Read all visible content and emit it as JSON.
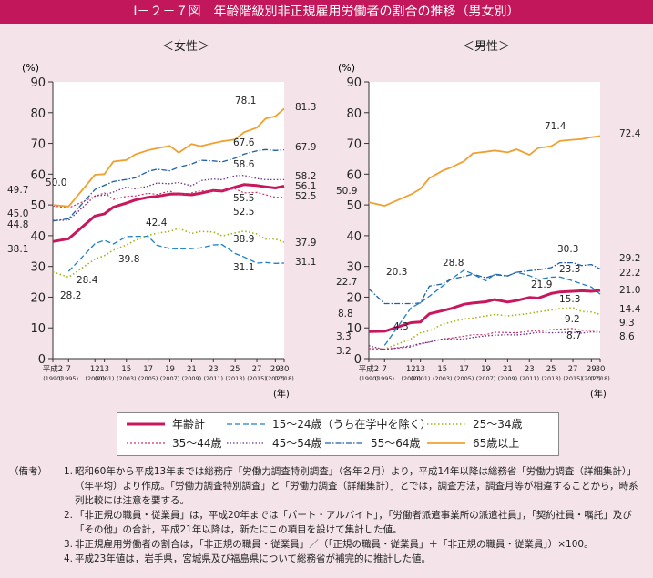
{
  "title": "Ⅰ－２－７図　年齢階級別非正規雇用労働者の割合の推移（男女別）",
  "panels": [
    {
      "title": "＜女性＞"
    },
    {
      "title": "＜男性＞"
    }
  ],
  "axis": {
    "unit": "(%)",
    "year_unit": "(年)",
    "y_ticks": [
      "0",
      "10",
      "20",
      "30",
      "40",
      "50",
      "60",
      "70",
      "80",
      "90"
    ],
    "x_ticks_top": [
      "平成2",
      "7",
      "12",
      "13",
      "15",
      "17",
      "19",
      "21",
      "23",
      "25",
      "27",
      "29",
      "30"
    ],
    "x_ticks_bottom": [
      "(1990)",
      "(1995)",
      "(2000)",
      "(2001)",
      "(2003)",
      "(2005)",
      "(2007)",
      "(2009)",
      "(2011)",
      "(2013)",
      "(2015)",
      "(2017)",
      "(2018)"
    ]
  },
  "legend": [
    {
      "label": "年齢計",
      "color": "#c8175d",
      "dash": "",
      "width": 3
    },
    {
      "label": "15～24歳（うち在学中を除く）",
      "color": "#1f7fc7",
      "dash": "6,3",
      "width": 1.3
    },
    {
      "label": "25～34歳",
      "color": "#a8b414",
      "dash": "1.5,2.5",
      "width": 1.6
    },
    {
      "label": "35～44歳",
      "color": "#d0306a",
      "dash": "2,2",
      "width": 1.2
    },
    {
      "label": "45～54歳",
      "color": "#6a2d91",
      "dash": "1.5,2",
      "width": 1.3
    },
    {
      "label": "55～64歳",
      "color": "#1f5fa8",
      "dash": "6,2,1.5,2",
      "width": 1.3
    },
    {
      "label": "65歳以上",
      "color": "#f0a030",
      "dash": "",
      "width": 1.8
    }
  ],
  "chart_data": [
    {
      "type": "line",
      "title": "＜女性＞",
      "ylabel": "(%)",
      "xlabel": "(年)",
      "ylim": [
        0,
        90
      ],
      "x": [
        1990,
        1995,
        2000,
        2001,
        2002,
        2003,
        2004,
        2005,
        2006,
        2007,
        2008,
        2009,
        2010,
        2011,
        2012,
        2013,
        2014,
        2015,
        2016,
        2017,
        2018
      ],
      "series": [
        {
          "name": "年齢計",
          "values": [
            38.1,
            39,
            46.4,
            47.1,
            49.3,
            50.6,
            51.6,
            52.5,
            52.8,
            53.5,
            53.6,
            53.3,
            53.8,
            54.7,
            54.5,
            55.8,
            56.6,
            56.3,
            55.9,
            55.5,
            56.1
          ]
        },
        {
          "name": "15～24歳（うち在学中を除く）",
          "values": [
            null,
            28.4,
            37.4,
            38.5,
            37.3,
            39.7,
            39.8,
            39.8,
            36.9,
            35.8,
            35.7,
            35.8,
            36,
            37,
            37.1,
            34.2,
            33.1,
            31.1,
            31.3,
            31,
            31.1
          ]
        },
        {
          "name": "25～34歳",
          "values": [
            28.2,
            26.5,
            32.4,
            33.5,
            35.3,
            37,
            38.5,
            40.1,
            40.8,
            41.4,
            42.4,
            40.7,
            41.4,
            41.2,
            39.9,
            40.9,
            41.5,
            40.6,
            38.9,
            38.9,
            37.9
          ]
        },
        {
          "name": "35～44歳",
          "values": [
            49.7,
            49,
            52.8,
            53.9,
            51.8,
            52.8,
            52.9,
            53.8,
            53.4,
            54.5,
            53.3,
            53.9,
            54.6,
            54.5,
            54.8,
            55.2,
            53.9,
            54.1,
            53.3,
            52.5,
            52.5
          ]
        },
        {
          "name": "45～54歳",
          "values": [
            45,
            45,
            52.9,
            53.2,
            54.2,
            55.8,
            55.2,
            56.1,
            57.1,
            56.9,
            57.3,
            56.2,
            57.9,
            58.4,
            58.2,
            59.5,
            59.6,
            58.6,
            58.2,
            58.2,
            58.2
          ]
        },
        {
          "name": "55～64歳",
          "values": [
            44.8,
            45.5,
            55,
            56.4,
            57.6,
            58.3,
            58.8,
            60.9,
            61.6,
            61.1,
            62.3,
            63.3,
            64.5,
            64.3,
            64,
            65.2,
            66.5,
            67.6,
            68,
            67.7,
            67.9
          ]
        },
        {
          "name": "65歳以上",
          "values": [
            50,
            49.5,
            59.8,
            60,
            64.1,
            64.6,
            66.4,
            67.8,
            68.4,
            69.2,
            67,
            69.8,
            69.1,
            70.1,
            70.7,
            71.3,
            73.6,
            75.1,
            78.1,
            78.8,
            81.3
          ]
        }
      ]
    },
    {
      "type": "line",
      "title": "＜男性＞",
      "ylabel": "(%)",
      "xlabel": "(年)",
      "ylim": [
        0,
        90
      ],
      "x": [
        1990,
        1995,
        2000,
        2001,
        2002,
        2003,
        2004,
        2005,
        2006,
        2007,
        2008,
        2009,
        2010,
        2011,
        2012,
        2013,
        2014,
        2015,
        2016,
        2017,
        2018
      ],
      "series": [
        {
          "name": "年齢計",
          "values": [
            8.8,
            8.9,
            11.7,
            11.9,
            14.6,
            15.6,
            16.3,
            17.7,
            18.1,
            18.5,
            19.2,
            18.4,
            18.9,
            19.9,
            19.7,
            21.2,
            21.7,
            21.9,
            22.1,
            21.9,
            22.2
          ]
        },
        {
          "name": "15～24歳（うち在学中を除く）",
          "values": [
            null,
            4.3,
            16.5,
            18.2,
            20.3,
            23.6,
            25.9,
            28.8,
            27.5,
            25.3,
            27.5,
            26.9,
            28.1,
            27,
            25.8,
            26.5,
            26.6,
            25.3,
            24.3,
            23.3,
            21
          ]
        },
        {
          "name": "25～34歳",
          "values": [
            3.2,
            3.1,
            6.4,
            8.4,
            9.1,
            11.2,
            11.9,
            12.9,
            13.2,
            13.9,
            14.4,
            13.9,
            14.2,
            14.7,
            15.2,
            15.8,
            16.3,
            16.6,
            15.3,
            15.2,
            14.4
          ]
        },
        {
          "name": "35～44歳",
          "values": [
            3.3,
            3.1,
            3.8,
            4.8,
            5.4,
            6.4,
            6.7,
            7.3,
            7.8,
            7.8,
            8.6,
            8.5,
            8.4,
            8.9,
            9.1,
            9.4,
            9.6,
            9.8,
            9.2,
            9.2,
            9.3
          ]
        },
        {
          "name": "45～54歳",
          "values": [
            4.2,
            2.9,
            4.2,
            4.9,
            5.4,
            6.4,
            6.4,
            6.4,
            6.9,
            7.4,
            7.6,
            7.8,
            7.7,
            8.1,
            8.6,
            8.4,
            8.5,
            8.6,
            8.3,
            8.7,
            8.6
          ]
        },
        {
          "name": "55～64歳",
          "values": [
            22.7,
            17.9,
            17.9,
            18.1,
            23.6,
            24.3,
            25.9,
            26.7,
            27.5,
            26.3,
            27.3,
            26.9,
            28.1,
            28.6,
            28.9,
            29.6,
            31.2,
            31.2,
            30.3,
            30.6,
            29.2
          ]
        },
        {
          "name": "65歳以上",
          "values": [
            50.9,
            49.7,
            53.4,
            55.2,
            58.7,
            61.1,
            62.2,
            64.2,
            66.8,
            67.3,
            67.7,
            67.1,
            68.1,
            66.3,
            68.5,
            69.1,
            70.8,
            71.2,
            71.4,
            72,
            72.4
          ]
        }
      ]
    }
  ],
  "female_labels": {
    "l1": "78.1",
    "l2": "81.3",
    "l3": "67.6",
    "l4": "67.9",
    "l5": "58.6",
    "l6": "58.2",
    "l7": "55.5",
    "l8": "56.1",
    "l9": "52.5",
    "l10": "52.5",
    "l11": "49.7",
    "l12": "50.0",
    "l13": "45.0",
    "l14": "44.8",
    "l15": "38.1",
    "l16": "42.4",
    "l17": "38.9",
    "l18": "37.9",
    "l19": "39.8",
    "l20": "28.4",
    "l21": "28.2",
    "l22": "31.1",
    "l23": "31.1"
  },
  "male_labels": {
    "l1": "50.9",
    "l2": "71.4",
    "l3": "72.4",
    "l4": "22.7",
    "l5": "20.3",
    "l6": "28.8",
    "l7": "30.3",
    "l8": "29.2",
    "l9": "23.3",
    "l10": "22.2",
    "l11": "21.9",
    "l12": "21.0",
    "l13": "15.3",
    "l14": "14.4",
    "l15": "8.8",
    "l16": "4.3",
    "l17": "3.3",
    "l18": "3.2",
    "l19": "9.2",
    "l20": "9.3",
    "l21": "8.7",
    "l22": "8.6"
  },
  "notes": {
    "head": "（備考）",
    "n1": "昭和60年から平成13年までは総務庁「労働力調査特別調査」（各年２月）より，平成14年以降は総務省「労働力調査（詳細集計）」（年平均）より作成。「労働力調査特別調査」と「労働力調査（詳細集計）」とでは，調査方法，調査月等が相違することから，時系列比較には注意を要する。",
    "n2": "「非正規の職員・従業員」は，平成20年までは「パート・アルバイト」，「労働者派遣事業所の派遣社員」，「契約社員・嘱託」及び「その他」の合計，平成21年以降は，新たにこの項目を設けて集計した値。",
    "n3": "非正規雇用労働者の割合は，「非正規の職員・従業員」／（「正規の職員・従業員」＋「非正規の職員・従業員」）×100。",
    "n4": "平成23年値は，岩手県，宮城県及び福島県について総務省が補完的に推計した値。"
  }
}
